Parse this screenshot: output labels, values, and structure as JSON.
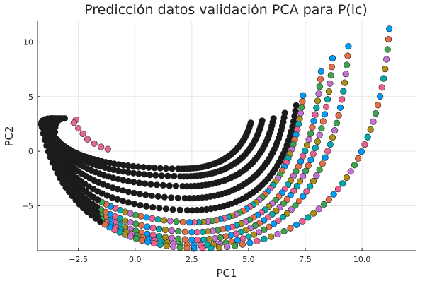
{
  "chart_data": {
    "type": "scatter",
    "title": "Predicción datos validación PCA para P(lc)",
    "xlabel": "PC1",
    "ylabel": "PC2",
    "xlim": [
      -4.3,
      12.4
    ],
    "ylim": [
      -9.1,
      11.9
    ],
    "xticks": [
      -2.5,
      0,
      2.5,
      5,
      7.5,
      10
    ],
    "xtick_labels": [
      "−2.5",
      "0.0",
      "2.5",
      "5.0",
      "7.5",
      "10.0"
    ],
    "yticks": [
      -5,
      0,
      5,
      10
    ],
    "ytick_labels": [
      "−5",
      "0",
      "5",
      "10"
    ],
    "grid": true,
    "legend": "none",
    "colors": {
      "validation_palette": [
        "#009AFA",
        "#E36F47",
        "#3EA44E",
        "#C371D2",
        "#AC8E18",
        "#00AAAE",
        "#ED5E93"
      ],
      "training": "#1a1a1a",
      "highlight": "#E26892"
    },
    "series": [
      {
        "role": "training",
        "curves": [
          {
            "start": [
              5.1,
              2.6
            ],
            "bottom": [
              1.9,
              -1.6
            ],
            "left": [
              -3.5,
              1.2
            ],
            "top": [
              -3.1,
              3.0
            ]
          },
          {
            "start": [
              5.6,
              2.8
            ],
            "bottom": [
              2.0,
              -2.3
            ],
            "left": [
              -3.6,
              1.4
            ],
            "top": [
              -3.2,
              3.0
            ]
          },
          {
            "start": [
              6.1,
              3.0
            ],
            "bottom": [
              2.1,
              -3.2
            ],
            "left": [
              -3.7,
              1.5
            ],
            "top": [
              -3.3,
              3.0
            ]
          },
          {
            "start": [
              6.6,
              3.5
            ],
            "bottom": [
              2.2,
              -4.3
            ],
            "left": [
              -3.8,
              1.6
            ],
            "top": [
              -3.4,
              3.0
            ]
          },
          {
            "start": [
              7.1,
              4.2
            ],
            "bottom": [
              2.3,
              -5.4
            ],
            "left": [
              -3.9,
              1.7
            ],
            "top": [
              -3.5,
              3.0
            ]
          }
        ]
      },
      {
        "role": "validation",
        "curves": [
          {
            "start": [
              7.4,
              5.1
            ],
            "bottom": [
              2.4,
              -6.5
            ],
            "left": [
              -3.9,
              1.8
            ],
            "top": [
              -3.6,
              3.0
            ]
          },
          {
            "start": [
              8.2,
              7.3
            ],
            "bottom": [
              2.5,
              -7.4
            ],
            "left": [
              -4.0,
              1.9
            ],
            "top": [
              -3.6,
              3.0
            ]
          },
          {
            "start": [
              8.7,
              8.5
            ],
            "bottom": [
              2.5,
              -8.1
            ],
            "left": [
              -4.0,
              2.0
            ],
            "top": [
              -3.7,
              3.0
            ]
          },
          {
            "start": [
              9.4,
              9.6
            ],
            "bottom": [
              2.6,
              -8.6
            ],
            "left": [
              -4.0,
              2.1
            ],
            "top": [
              -3.7,
              3.0
            ]
          },
          {
            "start": [
              11.2,
              11.2
            ],
            "bottom": [
              2.6,
              -8.9
            ],
            "left": [
              -4.1,
              2.2
            ],
            "top": [
              -3.7,
              3.0
            ]
          }
        ]
      },
      {
        "role": "highlight",
        "points": [
          [
            -2.6,
            2.9
          ],
          [
            -2.7,
            2.6
          ],
          [
            -2.5,
            2.1
          ],
          [
            -2.3,
            1.6
          ],
          [
            -2.1,
            1.1
          ],
          [
            -1.8,
            0.7
          ],
          [
            -1.5,
            0.4
          ],
          [
            -1.2,
            0.2
          ]
        ]
      }
    ]
  }
}
